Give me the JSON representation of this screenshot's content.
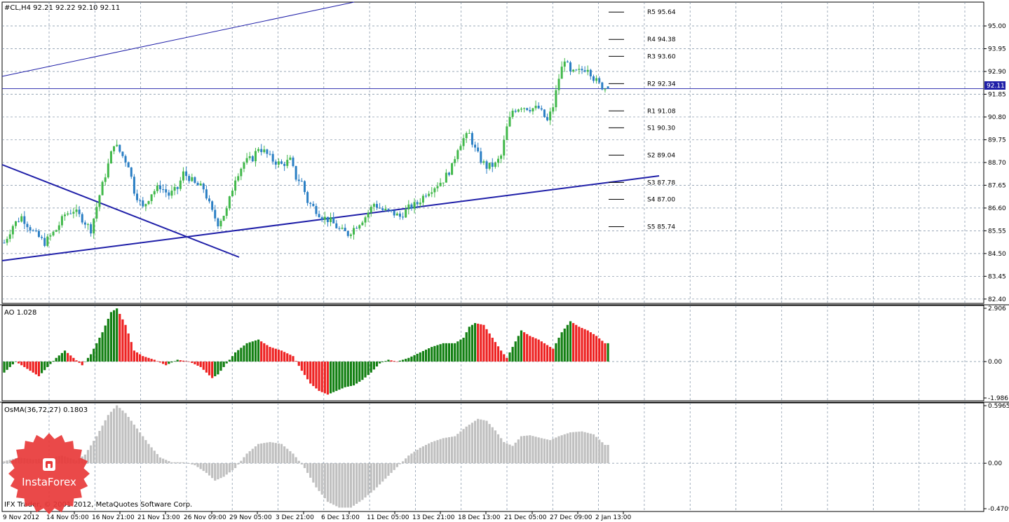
{
  "main_title": "#CL,H4  92.21 92.22 92.10 92.11",
  "ao_title": "AO 1.028",
  "osma_title": "OsMA(36,72,27) 0.1803",
  "copyright": "IFX Trader, © 2001-2012, MetaQuotes Software Corp.",
  "logo_text": "InstaForex",
  "current_price_label": "92.11",
  "colors": {
    "bull": "#41b84a",
    "bear": "#2b7fc4",
    "grid": "#7a8ca0",
    "trend": "#1f1fa8",
    "ao_up": "#138013",
    "ao_down": "#ee2222",
    "osma": "#c0c0c0",
    "logo": "#e8393a"
  },
  "chart_data": [
    {
      "type": "candlestick",
      "name": "#CL,H4",
      "ohlc_last": {
        "open": 92.21,
        "high": 92.22,
        "low": 92.1,
        "close": 92.11
      },
      "ylim": [
        82.2,
        96.1
      ],
      "yticks": [
        "95.00",
        "93.95",
        "92.90",
        "91.85",
        "90.80",
        "89.75",
        "88.70",
        "87.65",
        "86.60",
        "85.55",
        "84.50",
        "83.45",
        "82.40"
      ],
      "xticks": [
        "9 Nov 2012",
        "14 Nov 05:00",
        "16 Nov 21:00",
        "21 Nov 13:00",
        "26 Nov 09:00",
        "29 Nov 05:00",
        "3 Dec 21:00",
        "6 Dec 13:00",
        "11 Dec 05:00",
        "13 Dec 21:00",
        "18 Dec 13:00",
        "21 Dec 05:00",
        "27 Dec 09:00",
        "2 Jan 13:00"
      ],
      "pivot_levels": [
        {
          "label": "R5 95.64",
          "value": 95.64
        },
        {
          "label": "R4 94.38",
          "value": 94.38
        },
        {
          "label": "R3 93.60",
          "value": 93.6
        },
        {
          "label": "R2 92.34",
          "value": 92.34
        },
        {
          "label": "R1 91.08",
          "value": 91.08
        },
        {
          "label": "S1 90.30",
          "value": 90.3
        },
        {
          "label": "S2 89.04",
          "value": 89.04
        },
        {
          "label": "S3 87.78",
          "value": 87.78
        },
        {
          "label": "S4 87.00",
          "value": 87.0
        },
        {
          "label": "S5 85.74",
          "value": 85.74
        }
      ],
      "close_path": [
        [
          0,
          85.0
        ],
        [
          3,
          85.8
        ],
        [
          6,
          86.2
        ],
        [
          10,
          85.5
        ],
        [
          14,
          85.0
        ],
        [
          18,
          85.6
        ],
        [
          21,
          86.3
        ],
        [
          24,
          86.5
        ],
        [
          27,
          86.1
        ],
        [
          30,
          85.6
        ],
        [
          33,
          87.2
        ],
        [
          36,
          88.6
        ],
        [
          38,
          89.6
        ],
        [
          40,
          89.2
        ],
        [
          43,
          88.6
        ],
        [
          45,
          87.4
        ],
        [
          48,
          86.6
        ],
        [
          51,
          87.3
        ],
        [
          54,
          87.6
        ],
        [
          57,
          87.2
        ],
        [
          60,
          87.5
        ],
        [
          62,
          88.2
        ],
        [
          64,
          88.0
        ],
        [
          66,
          87.7
        ],
        [
          69,
          87.5
        ],
        [
          72,
          86.4
        ],
        [
          74,
          85.9
        ],
        [
          77,
          86.5
        ],
        [
          80,
          88.0
        ],
        [
          83,
          88.7
        ],
        [
          86,
          88.9
        ],
        [
          88,
          89.4
        ],
        [
          90,
          89.2
        ],
        [
          93,
          88.8
        ],
        [
          96,
          88.6
        ],
        [
          99,
          88.8
        ],
        [
          101,
          88.0
        ],
        [
          103,
          87.8
        ],
        [
          105,
          86.9
        ],
        [
          108,
          86.5
        ],
        [
          110,
          86.2
        ],
        [
          113,
          86.0
        ],
        [
          116,
          85.6
        ],
        [
          119,
          85.4
        ],
        [
          122,
          85.8
        ],
        [
          125,
          86.2
        ],
        [
          128,
          86.8
        ],
        [
          131,
          86.5
        ],
        [
          134,
          86.4
        ],
        [
          137,
          86.2
        ],
        [
          140,
          86.6
        ],
        [
          143,
          86.8
        ],
        [
          146,
          87.3
        ],
        [
          149,
          87.6
        ],
        [
          152,
          87.9
        ],
        [
          155,
          88.5
        ],
        [
          157,
          89.4
        ],
        [
          159,
          89.8
        ],
        [
          161,
          90.0
        ],
        [
          163,
          89.3
        ],
        [
          165,
          88.8
        ],
        [
          167,
          88.5
        ],
        [
          170,
          88.6
        ],
        [
          172,
          89.0
        ],
        [
          174,
          90.3
        ],
        [
          176,
          91.1
        ],
        [
          179,
          91.3
        ],
        [
          182,
          91.2
        ],
        [
          185,
          91.2
        ],
        [
          188,
          90.6
        ],
        [
          190,
          91.3
        ],
        [
          192,
          92.6
        ],
        [
          194,
          93.5
        ],
        [
          196,
          92.8
        ],
        [
          199,
          92.9
        ],
        [
          202,
          93.1
        ],
        [
          204,
          92.6
        ],
        [
          206,
          92.3
        ],
        [
          208,
          92.11
        ]
      ]
    },
    {
      "type": "histogram",
      "name": "AO",
      "value_label": "AO 1.028",
      "ylim": [
        -1.986,
        2.906
      ],
      "yticks": [
        "2.906",
        "0.00",
        "-1.986"
      ],
      "path": [
        [
          0,
          -0.6
        ],
        [
          4,
          0.0
        ],
        [
          8,
          -0.4
        ],
        [
          12,
          -0.8
        ],
        [
          15,
          -0.3
        ],
        [
          18,
          0.2
        ],
        [
          21,
          0.6
        ],
        [
          24,
          0.2
        ],
        [
          27,
          -0.2
        ],
        [
          30,
          0.4
        ],
        [
          34,
          1.6
        ],
        [
          37,
          2.7
        ],
        [
          39,
          2.9
        ],
        [
          42,
          2.0
        ],
        [
          45,
          0.6
        ],
        [
          48,
          0.3
        ],
        [
          52,
          0.1
        ],
        [
          56,
          -0.2
        ],
        [
          60,
          0.1
        ],
        [
          64,
          0.0
        ],
        [
          68,
          -0.3
        ],
        [
          72,
          -0.9
        ],
        [
          74,
          -0.7
        ],
        [
          77,
          -0.1
        ],
        [
          80,
          0.5
        ],
        [
          84,
          1.0
        ],
        [
          88,
          1.2
        ],
        [
          92,
          0.8
        ],
        [
          96,
          0.6
        ],
        [
          100,
          0.3
        ],
        [
          103,
          -0.5
        ],
        [
          106,
          -1.2
        ],
        [
          109,
          -1.6
        ],
        [
          112,
          -1.8
        ],
        [
          115,
          -1.6
        ],
        [
          118,
          -1.4
        ],
        [
          121,
          -1.3
        ],
        [
          124,
          -1.0
        ],
        [
          127,
          -0.6
        ],
        [
          130,
          -0.1
        ],
        [
          133,
          0.1
        ],
        [
          136,
          0.0
        ],
        [
          140,
          0.2
        ],
        [
          144,
          0.5
        ],
        [
          148,
          0.8
        ],
        [
          152,
          1.0
        ],
        [
          156,
          1.0
        ],
        [
          159,
          1.3
        ],
        [
          161,
          1.9
        ],
        [
          163,
          2.1
        ],
        [
          166,
          2.0
        ],
        [
          169,
          1.3
        ],
        [
          172,
          0.6
        ],
        [
          174,
          0.2
        ],
        [
          176,
          0.8
        ],
        [
          179,
          1.7
        ],
        [
          182,
          1.4
        ],
        [
          185,
          1.2
        ],
        [
          188,
          0.9
        ],
        [
          190,
          0.7
        ],
        [
          193,
          1.6
        ],
        [
          196,
          2.2
        ],
        [
          199,
          1.9
        ],
        [
          202,
          1.7
        ],
        [
          205,
          1.4
        ],
        [
          208,
          1.0
        ]
      ]
    },
    {
      "type": "histogram",
      "name": "OsMA(36,72,27)",
      "value_label": "OsMA(36,72,27) 0.1803",
      "ylim": [
        -0.4709,
        0.5965
      ],
      "yticks": [
        "0.5965",
        "0.00",
        "-0.4709"
      ],
      "path": [
        [
          0,
          0.02
        ],
        [
          5,
          0.06
        ],
        [
          10,
          0.04
        ],
        [
          15,
          0.05
        ],
        [
          20,
          0.08
        ],
        [
          25,
          0.03
        ],
        [
          28,
          0.09
        ],
        [
          32,
          0.28
        ],
        [
          36,
          0.5
        ],
        [
          39,
          0.6
        ],
        [
          42,
          0.52
        ],
        [
          46,
          0.36
        ],
        [
          50,
          0.2
        ],
        [
          54,
          0.06
        ],
        [
          58,
          0.01
        ],
        [
          62,
          0.01
        ],
        [
          66,
          -0.02
        ],
        [
          70,
          -0.1
        ],
        [
          73,
          -0.18
        ],
        [
          76,
          -0.14
        ],
        [
          80,
          -0.05
        ],
        [
          84,
          0.1
        ],
        [
          88,
          0.2
        ],
        [
          92,
          0.22
        ],
        [
          96,
          0.2
        ],
        [
          100,
          0.1
        ],
        [
          104,
          -0.05
        ],
        [
          108,
          -0.25
        ],
        [
          112,
          -0.4
        ],
        [
          116,
          -0.46
        ],
        [
          120,
          -0.46
        ],
        [
          124,
          -0.38
        ],
        [
          128,
          -0.28
        ],
        [
          132,
          -0.16
        ],
        [
          136,
          -0.04
        ],
        [
          140,
          0.08
        ],
        [
          144,
          0.16
        ],
        [
          148,
          0.22
        ],
        [
          152,
          0.26
        ],
        [
          156,
          0.28
        ],
        [
          160,
          0.38
        ],
        [
          164,
          0.46
        ],
        [
          167,
          0.44
        ],
        [
          170,
          0.34
        ],
        [
          173,
          0.22
        ],
        [
          176,
          0.18
        ],
        [
          179,
          0.28
        ],
        [
          182,
          0.29
        ],
        [
          186,
          0.26
        ],
        [
          189,
          0.24
        ],
        [
          192,
          0.28
        ],
        [
          196,
          0.32
        ],
        [
          200,
          0.33
        ],
        [
          204,
          0.3
        ],
        [
          208,
          0.19
        ]
      ]
    }
  ]
}
